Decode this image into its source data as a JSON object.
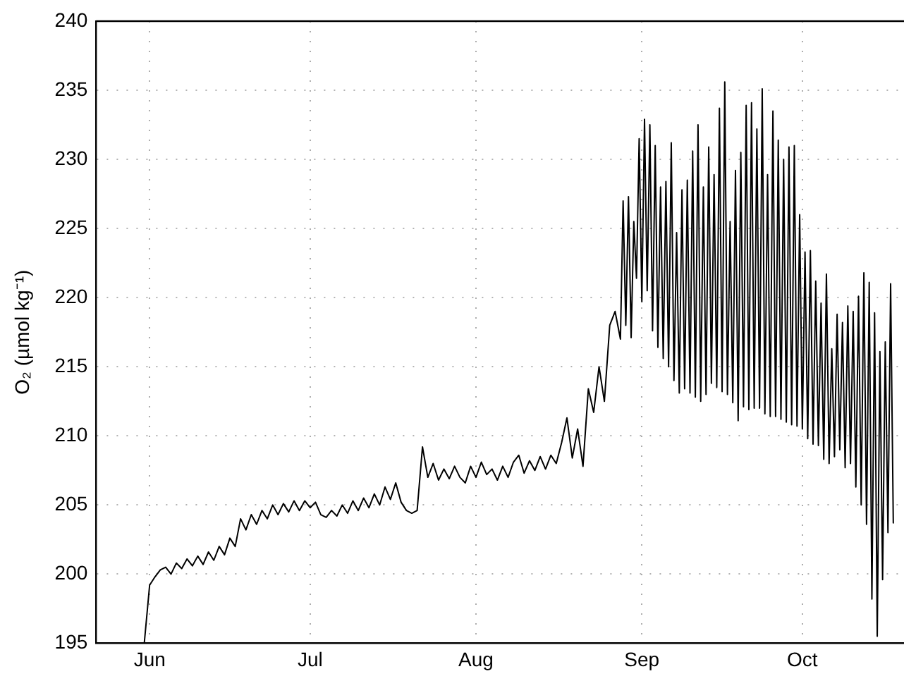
{
  "chart_data": {
    "type": "line",
    "ylabel": "O₂ (µmol kg⁻¹)",
    "color": "#000000",
    "grid": true,
    "xlim": [
      "--05-22",
      "--10-20"
    ],
    "ylim": [
      195,
      240
    ],
    "xticks": [
      {
        "value": "--06-01",
        "label": "Jun"
      },
      {
        "value": "--07-01",
        "label": "Jul"
      },
      {
        "value": "--08-01",
        "label": "Aug"
      },
      {
        "value": "--09-01",
        "label": "Sep"
      },
      {
        "value": "--10-01",
        "label": "Oct"
      }
    ],
    "yticks": [
      195,
      200,
      205,
      210,
      215,
      220,
      225,
      230,
      235,
      240
    ],
    "x": [
      "--05-31",
      "--06-01",
      "--06-02",
      "--06-03",
      "--06-04",
      "--06-05",
      "--06-06",
      "--06-07",
      "--06-08",
      "--06-09",
      "--06-10",
      "--06-11",
      "--06-12",
      "--06-13",
      "--06-14",
      "--06-15",
      "--06-16",
      "--06-17",
      "--06-18",
      "--06-19",
      "--06-20",
      "--06-21",
      "--06-22",
      "--06-23",
      "--06-24",
      "--06-25",
      "--06-26",
      "--06-27",
      "--06-28",
      "--06-29",
      "--06-30",
      "--07-01",
      "--07-02",
      "--07-03",
      "--07-04",
      "--07-05",
      "--07-06",
      "--07-07",
      "--07-08",
      "--07-09",
      "--07-10",
      "--07-11",
      "--07-12",
      "--07-13",
      "--07-14",
      "--07-15",
      "--07-16",
      "--07-17",
      "--07-18",
      "--07-19",
      "--07-20",
      "--07-21",
      "--07-22",
      "--07-23",
      "--07-24",
      "--07-25",
      "--07-26",
      "--07-27",
      "--07-28",
      "--07-29",
      "--07-30",
      "--07-31",
      "--08-01",
      "--08-02",
      "--08-03",
      "--08-04",
      "--08-05",
      "--08-06",
      "--08-07",
      "--08-08",
      "--08-09",
      "--08-10",
      "--08-11",
      "--08-12",
      "--08-13",
      "--08-14",
      "--08-15",
      "--08-16",
      "--08-17",
      "--08-18",
      "--08-19",
      "--08-20",
      "--08-21",
      "--08-22",
      "--08-23",
      "--08-24",
      "--08-25",
      "--08-26",
      "--08-27",
      "--08-28T00:00",
      "--08-28T12:00",
      "--08-29T00:00",
      "--08-29T12:00",
      "--08-30T00:00",
      "--08-30T12:00",
      "--08-31T00:00",
      "--08-31T12:00",
      "--09-01T00:00",
      "--09-01T12:00",
      "--09-02T00:00",
      "--09-02T12:00",
      "--09-03T00:00",
      "--09-03T12:00",
      "--09-04T00:00",
      "--09-04T12:00",
      "--09-05T00:00",
      "--09-05T12:00",
      "--09-06T00:00",
      "--09-06T12:00",
      "--09-07T00:00",
      "--09-07T12:00",
      "--09-08T00:00",
      "--09-08T12:00",
      "--09-09T00:00",
      "--09-09T12:00",
      "--09-10T00:00",
      "--09-10T12:00",
      "--09-11T00:00",
      "--09-11T12:00",
      "--09-12T00:00",
      "--09-12T12:00",
      "--09-13T00:00",
      "--09-13T12:00",
      "--09-14T00:00",
      "--09-14T12:00",
      "--09-15T00:00",
      "--09-15T12:00",
      "--09-16T00:00",
      "--09-16T12:00",
      "--09-17T00:00",
      "--09-17T12:00",
      "--09-18T00:00",
      "--09-18T12:00",
      "--09-19T00:00",
      "--09-19T12:00",
      "--09-20T00:00",
      "--09-20T12:00",
      "--09-21T00:00",
      "--09-21T12:00",
      "--09-22T00:00",
      "--09-22T12:00",
      "--09-23T00:00",
      "--09-23T12:00",
      "--09-24T00:00",
      "--09-24T12:00",
      "--09-25T00:00",
      "--09-25T12:00",
      "--09-26T00:00",
      "--09-26T12:00",
      "--09-27T00:00",
      "--09-27T12:00",
      "--09-28T00:00",
      "--09-28T12:00",
      "--09-29T00:00",
      "--09-29T12:00",
      "--09-30T00:00",
      "--09-30T12:00",
      "--10-01T00:00",
      "--10-01T12:00",
      "--10-02T00:00",
      "--10-02T12:00",
      "--10-03T00:00",
      "--10-03T12:00",
      "--10-04T00:00",
      "--10-04T12:00",
      "--10-05T00:00",
      "--10-05T12:00",
      "--10-06T00:00",
      "--10-06T12:00",
      "--10-07T00:00",
      "--10-07T12:00",
      "--10-08T00:00",
      "--10-08T12:00",
      "--10-09T00:00",
      "--10-09T12:00",
      "--10-10T00:00",
      "--10-10T12:00",
      "--10-11T00:00",
      "--10-11T12:00",
      "--10-12T00:00",
      "--10-12T12:00",
      "--10-13T00:00",
      "--10-13T12:00",
      "--10-14T00:00",
      "--10-14T12:00",
      "--10-15T00:00",
      "--10-15T12:00",
      "--10-16T00:00",
      "--10-16T12:00",
      "--10-17T00:00",
      "--10-17T12:00",
      "--10-18T00:00"
    ],
    "values": [
      195,
      199.2,
      199.8,
      200.3,
      200.5,
      200,
      200.8,
      200.4,
      201.1,
      200.6,
      201.3,
      200.7,
      201.6,
      201,
      202,
      201.4,
      202.6,
      202,
      204,
      203.2,
      204.3,
      203.6,
      204.6,
      204,
      205,
      204.3,
      205.1,
      204.5,
      205.3,
      204.6,
      205.3,
      204.8,
      205.2,
      204.3,
      204.1,
      204.6,
      204.2,
      205,
      204.4,
      205.3,
      204.6,
      205.5,
      204.8,
      205.8,
      205,
      206.3,
      205.4,
      206.6,
      205.2,
      204.6,
      204.4,
      204.6,
      209.2,
      207,
      208,
      206.8,
      207.6,
      206.9,
      207.8,
      207,
      206.6,
      207.8,
      207,
      208.1,
      207.2,
      207.6,
      206.8,
      207.8,
      207,
      208.1,
      208.6,
      207.3,
      208.2,
      207.5,
      208.5,
      207.6,
      208.6,
      208,
      209.5,
      211.3,
      208.4,
      210.5,
      207.8,
      213.4,
      211.7,
      215,
      212.5,
      218,
      219,
      217,
      227,
      218,
      227.3,
      217.1,
      225.5,
      221.4,
      231.5,
      219.7,
      232.9,
      220.5,
      232.5,
      217.6,
      231,
      216.4,
      228,
      215.6,
      228.4,
      215,
      231.2,
      214,
      224.7,
      213.1,
      227.8,
      213.4,
      228.5,
      213.1,
      230.6,
      212.8,
      232.5,
      212.5,
      228,
      213,
      230.9,
      213.8,
      228.9,
      213.5,
      233.7,
      213.2,
      235.6,
      213,
      225.5,
      212.4,
      229.2,
      211.1,
      230.5,
      212.1,
      233.9,
      211.9,
      234.1,
      212,
      232.2,
      212,
      235.1,
      211.6,
      228.9,
      211.4,
      233.5,
      211.4,
      231.4,
      211.2,
      230,
      211,
      230.9,
      210.8,
      231,
      210.7,
      226,
      210.5,
      223.3,
      209.8,
      223.4,
      209.4,
      221.2,
      209.3,
      219.6,
      208.3,
      221.7,
      208,
      216.3,
      208.5,
      218.8,
      209,
      218.2,
      207.7,
      219.4,
      208,
      219,
      206.3,
      220.1,
      205,
      221.8,
      203.6,
      221.1,
      198.2,
      218.9,
      195.5,
      216.1,
      199.6,
      216.8,
      203,
      221,
      203.7
    ]
  }
}
